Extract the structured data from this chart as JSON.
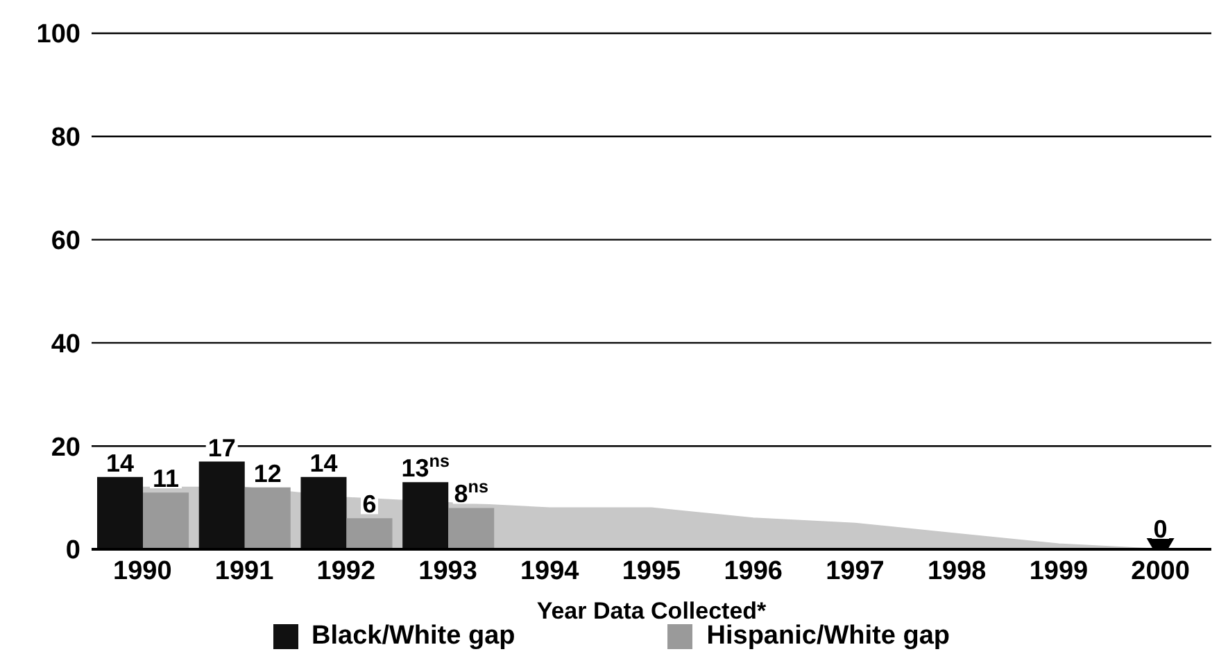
{
  "chart_data": {
    "type": "bar",
    "xlabel": "Year Data Collected*",
    "categories": [
      "1990",
      "1991",
      "1992",
      "1993",
      "1994",
      "1995",
      "1996",
      "1997",
      "1998",
      "1999",
      "2000"
    ],
    "series": [
      {
        "type": "area",
        "color": "#c8c8c8",
        "values": [
          12,
          12,
          10,
          9,
          8,
          8,
          6,
          5,
          3,
          1,
          0
        ]
      },
      {
        "name": "Black/White gap",
        "color": "#111111",
        "values": [
          14,
          17,
          14,
          13,
          null,
          null,
          null,
          null,
          null,
          null,
          null
        ],
        "value_labels": [
          "14",
          "17",
          "14",
          "13$^{ns}$",
          null,
          null,
          null,
          null,
          null,
          null,
          null
        ]
      },
      {
        "name": "Hispanic/White gap",
        "color": "#9a9a9a",
        "values": [
          11,
          12,
          6,
          8,
          null,
          null,
          null,
          null,
          null,
          null,
          null
        ],
        "value_labels": [
          "11",
          "12",
          "6",
          "8$^{ns}$",
          null,
          null,
          null,
          null,
          null,
          null,
          null
        ]
      },
      {
        "type": "scatter",
        "color": "#000000",
        "marker": "triangle",
        "values": [
          null,
          null,
          null,
          null,
          null,
          null,
          null,
          null,
          null,
          null,
          0
        ],
        "value_labels": [
          null,
          null,
          null,
          null,
          null,
          null,
          null,
          null,
          null,
          null,
          "0"
        ]
      }
    ],
    "ylim": [
      0,
      100
    ],
    "yticks": [
      0,
      20,
      40,
      60,
      80,
      100
    ],
    "grid": "y",
    "legend": "bottom"
  }
}
